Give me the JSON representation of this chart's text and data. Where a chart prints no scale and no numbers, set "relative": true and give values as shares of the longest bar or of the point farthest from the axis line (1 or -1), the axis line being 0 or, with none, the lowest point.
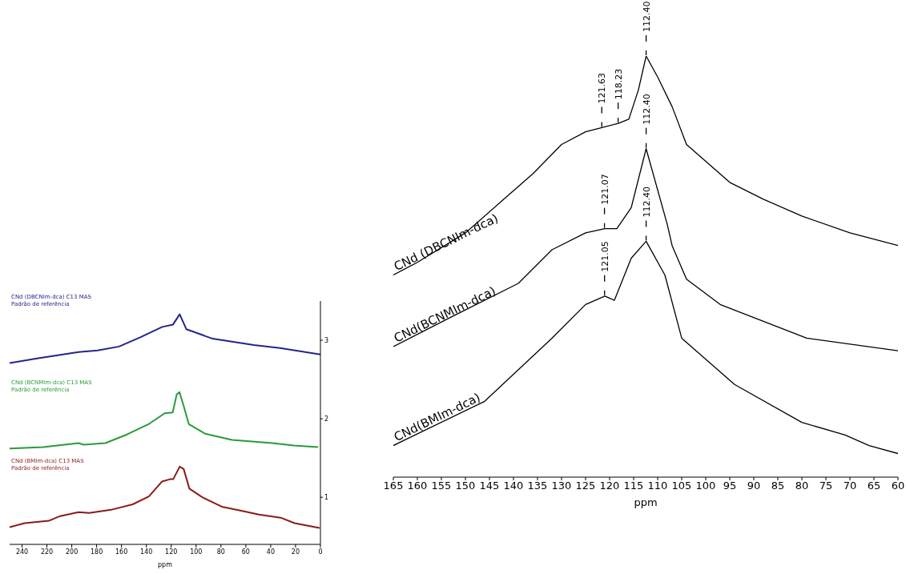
{
  "chart_data": [
    {
      "type": "line",
      "xlabel": "ppm",
      "xlim": [
        165,
        60
      ],
      "xticks": [
        165,
        160,
        155,
        150,
        145,
        140,
        135,
        130,
        125,
        120,
        115,
        110,
        105,
        100,
        95,
        90,
        85,
        80,
        75,
        70,
        65,
        60
      ],
      "relative": true,
      "series": [
        {
          "name": "CNd (DBCNIm-dca)",
          "color": "#000000",
          "x": [
            165,
            160,
            150,
            143,
            136,
            130,
            125,
            121.6,
            118.2,
            116,
            114,
            112.4,
            110,
            107,
            104,
            95,
            88,
            80,
            70,
            60
          ],
          "values": [
            0.48,
            0.51,
            0.58,
            0.65,
            0.72,
            0.79,
            0.82,
            0.83,
            0.84,
            0.85,
            0.92,
            1.0,
            0.95,
            0.88,
            0.79,
            0.7,
            0.66,
            0.62,
            0.58,
            0.55
          ]
        },
        {
          "name": "CNd(BCNMIm-dca)",
          "color": "#000000",
          "x": [
            165,
            153,
            139,
            132,
            125,
            121,
            118.5,
            115.5,
            112.4,
            108,
            107,
            104,
            97,
            79,
            60
          ],
          "values": [
            0.31,
            0.38,
            0.46,
            0.54,
            0.58,
            0.59,
            0.59,
            0.64,
            0.78,
            0.6,
            0.55,
            0.47,
            0.41,
            0.33,
            0.3
          ]
        },
        {
          "name": "CNd(BMIm-dca)",
          "color": "#000000",
          "x": [
            165,
            146,
            132,
            125,
            121,
            119,
            115.5,
            112.4,
            108.5,
            105,
            94,
            80,
            71,
            66,
            60
          ],
          "values": [
            0.075,
            0.18,
            0.33,
            0.41,
            0.43,
            0.42,
            0.52,
            0.56,
            0.48,
            0.33,
            0.22,
            0.13,
            0.1,
            0.075,
            0.056
          ]
        }
      ],
      "annotations": [
        {
          "text": "112.40",
          "x": 112.4,
          "y": 1.0
        },
        {
          "text": "121.63",
          "x": 121.63,
          "y": 0.83
        },
        {
          "text": "118.23",
          "x": 118.23,
          "y": 0.84
        },
        {
          "text": "112.40",
          "x": 112.4,
          "y": 0.78
        },
        {
          "text": "121.07",
          "x": 121.07,
          "y": 0.59
        },
        {
          "text": "112.40",
          "x": 112.4,
          "y": 0.56
        },
        {
          "text": "121.05",
          "x": 121.05,
          "y": 0.43
        }
      ]
    },
    {
      "type": "line",
      "xlabel": "ppm",
      "xlim": [
        250,
        0
      ],
      "xticks": [
        240,
        220,
        200,
        180,
        160,
        140,
        120,
        100,
        80,
        60,
        40,
        20,
        0
      ],
      "ylim": [
        0.4,
        3.5
      ],
      "yticks": [
        1,
        2,
        3
      ],
      "series": [
        {
          "name": "CNd (DBCNIm-dca) C13 MAS",
          "color": "#24248c",
          "x": [
            250,
            227,
            194.5,
            179.3,
            162,
            144.6,
            127.3,
            118.6,
            113.2,
            107.8,
            86.7,
            53.5,
            32.5,
            0
          ],
          "values": [
            2.71,
            2.77,
            2.85,
            2.87,
            2.92,
            3.04,
            3.17,
            3.2,
            3.33,
            3.14,
            3.02,
            2.94,
            2.9,
            2.82
          ]
        },
        {
          "name": "CNd (BCNMIm-dca) C13 MAS",
          "color": "#2a9a3a",
          "x": [
            250,
            223,
            194.7,
            190.3,
            173,
            155.6,
            138.3,
            125.3,
            118.8,
            115.6,
            113.4,
            110.1,
            105.8,
            92.8,
            71.1,
            38.6,
            21.3,
            1.8
          ],
          "values": [
            1.62,
            1.64,
            1.69,
            1.67,
            1.69,
            1.8,
            1.93,
            2.07,
            2.08,
            2.31,
            2.34,
            2.17,
            1.93,
            1.81,
            1.73,
            1.69,
            1.66,
            1.64
          ]
        },
        {
          "name": "CNd (BMIm-dca) C13 MAS",
          "color": "#8b1a1a",
          "x": [
            250,
            238,
            218.5,
            209.4,
            194.5,
            186,
            168.5,
            151,
            138,
            127.5,
            121,
            118.4,
            113.2,
            110,
            105.4,
            95,
            79.3,
            64.4,
            49.4,
            31.9,
            20.8,
            0.7
          ],
          "values": [
            0.62,
            0.67,
            0.7,
            0.76,
            0.81,
            0.8,
            0.84,
            0.91,
            1.01,
            1.2,
            1.23,
            1.23,
            1.39,
            1.36,
            1.11,
            1.0,
            0.88,
            0.83,
            0.78,
            0.74,
            0.67,
            0.61
          ]
        }
      ],
      "annotations": [
        "Padrão de referência",
        "Padrão de referência",
        "Padrão de referência"
      ]
    }
  ]
}
